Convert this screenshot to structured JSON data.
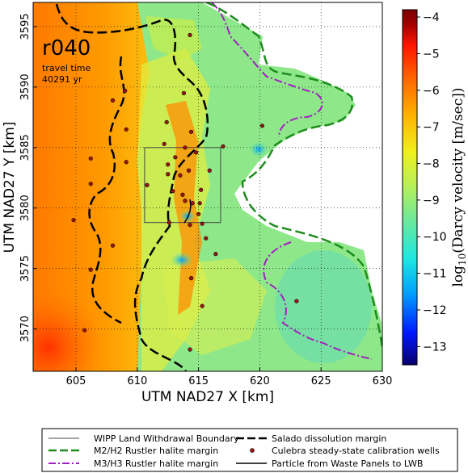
{
  "panel": {
    "realization": "r040",
    "travel_time_label": "travel time",
    "travel_time_value": "40291 yr"
  },
  "axes": {
    "xlabel": "UTM NAD27 X [km]",
    "ylabel": "UTM NAD27 Y [km]",
    "xlim": [
      601.5,
      630
    ],
    "ylim": [
      3566.5,
      3597
    ],
    "xticks": [
      605,
      610,
      615,
      620,
      625,
      630
    ],
    "yticks": [
      3570,
      3575,
      3580,
      3585,
      3590,
      3595
    ],
    "grid": true
  },
  "colorbar": {
    "label_prefix": "log",
    "label_sub": "10",
    "label_rest": "(Darcy velocity [m/sec])",
    "ticks": [
      -4,
      -5,
      -6,
      -7,
      -8,
      -9,
      -10,
      -11,
      -12,
      -13
    ],
    "range": [
      -13.5,
      -3.8
    ],
    "colors": [
      "#08006e",
      "#0018ff",
      "#00a0ff",
      "#1de8e0",
      "#68e8a0",
      "#b4f05a",
      "#f0f01e",
      "#ffb400",
      "#ff6a00",
      "#ff1400",
      "#a00000",
      "#7a0000"
    ]
  },
  "legend": {
    "items": [
      {
        "key": "wipp",
        "label": "WIPP Land Withdrawal Boundary",
        "color": "#444444"
      },
      {
        "key": "salado",
        "label": "Salado dissolution margin",
        "color": "#000000"
      },
      {
        "key": "m2h2",
        "label": "M2/H2 Rustler halite margin",
        "color": "#1e8c1e"
      },
      {
        "key": "wells",
        "label": "Culebra steady-state calibration wells",
        "color": "#a01414"
      },
      {
        "key": "m3h3",
        "label": "M3/H3 Rustler halite margin",
        "color": "#a020c0"
      },
      {
        "key": "particle",
        "label": "Particle from Waste Panels to LWB",
        "color": "#000000"
      }
    ]
  },
  "wipp_boundary": {
    "x0": 610.6,
    "x1": 616.8,
    "y0": 3578.8,
    "y1": 3585.0
  },
  "wells": [
    [
      614.3,
      3594.3
    ],
    [
      608.0,
      3588.9
    ],
    [
      612.4,
      3587.1
    ],
    [
      609.1,
      3586.5
    ],
    [
      614.4,
      3586.3
    ],
    [
      617.0,
      3585.1
    ],
    [
      612.2,
      3585.3
    ],
    [
      613.9,
      3585.0
    ],
    [
      614.8,
      3584.6
    ],
    [
      613.1,
      3584.2
    ],
    [
      609.1,
      3583.8
    ],
    [
      612.5,
      3583.6
    ],
    [
      614.2,
      3583.1
    ],
    [
      615.9,
      3583.1
    ],
    [
      606.2,
      3584.1
    ],
    [
      606.2,
      3582.0
    ],
    [
      612.5,
      3582.8
    ],
    [
      613.5,
      3582.7
    ],
    [
      610.8,
      3581.9
    ],
    [
      612.9,
      3581.4
    ],
    [
      613.7,
      3581.1
    ],
    [
      615.2,
      3581.5
    ],
    [
      613.9,
      3580.6
    ],
    [
      614.5,
      3580.4
    ],
    [
      615.1,
      3580.4
    ],
    [
      615.0,
      3579.5
    ],
    [
      612.6,
      3578.8
    ],
    [
      614.3,
      3578.6
    ],
    [
      615.3,
      3578.7
    ],
    [
      604.8,
      3579.0
    ],
    [
      615.6,
      3577.5
    ],
    [
      608.0,
      3576.9
    ],
    [
      616.4,
      3576.2
    ],
    [
      614.4,
      3574.2
    ],
    [
      606.2,
      3574.9
    ],
    [
      615.3,
      3571.9
    ],
    [
      623.0,
      3572.3
    ],
    [
      605.7,
      3569.9
    ],
    [
      614.3,
      3568.3
    ],
    [
      620.2,
      3586.8
    ],
    [
      609.0,
      3589.7
    ],
    [
      613.8,
      3589.5
    ]
  ]
}
